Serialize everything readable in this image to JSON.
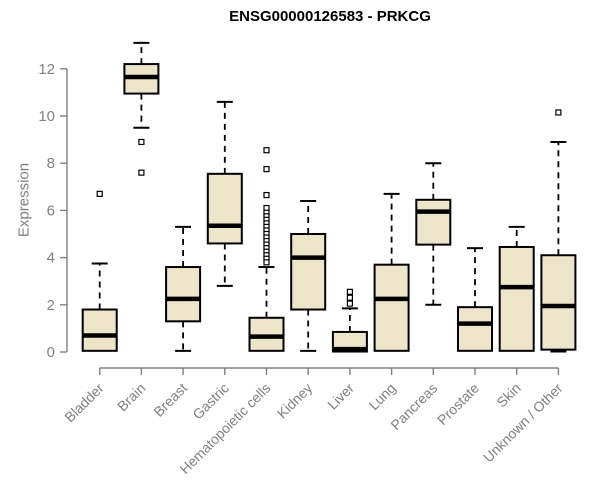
{
  "chart_data": {
    "type": "boxplot",
    "title": "ENSG00000126583 - PRKCG",
    "ylabel": "Expression",
    "xlabel": "",
    "yticks": [
      0,
      2,
      4,
      6,
      8,
      10,
      12
    ],
    "ylim": [
      0,
      13.3
    ],
    "grid": false,
    "legend": "none",
    "categories": [
      "Bladder",
      "Brain",
      "Breast",
      "Gastric",
      "Hematopoietic cells",
      "Kidney",
      "Liver",
      "Lung",
      "Pancreas",
      "Prostate",
      "Skin",
      "Unknown / Other"
    ],
    "series": [
      {
        "label": "Bladder",
        "whisker_low": 0.05,
        "q1": 0.05,
        "median": 0.7,
        "q3": 1.8,
        "whisker_high": 3.75,
        "outliers": [
          6.7
        ]
      },
      {
        "label": "Brain",
        "whisker_low": 9.5,
        "q1": 10.95,
        "median": 11.65,
        "q3": 12.2,
        "whisker_high": 13.1,
        "outliers": [
          8.9,
          7.6
        ]
      },
      {
        "label": "Breast",
        "whisker_low": 0.05,
        "q1": 1.3,
        "median": 2.25,
        "q3": 3.6,
        "whisker_high": 5.3,
        "outliers": []
      },
      {
        "label": "Gastric",
        "whisker_low": 2.8,
        "q1": 4.6,
        "median": 5.35,
        "q3": 7.55,
        "whisker_high": 10.6,
        "outliers": []
      },
      {
        "label": "Hematopoietic cells",
        "whisker_low": 0.02,
        "q1": 0.05,
        "median": 0.65,
        "q3": 1.45,
        "whisker_high": 3.6,
        "outliers": [
          8.55,
          7.75,
          6.65,
          6.1,
          5.9,
          5.75,
          5.6,
          5.45,
          5.3,
          5.15,
          5.0,
          4.85,
          4.7,
          4.55,
          4.4,
          4.25,
          4.1,
          3.95,
          3.8
        ]
      },
      {
        "label": "Kidney",
        "whisker_low": 0.05,
        "q1": 1.8,
        "median": 4.0,
        "q3": 5.0,
        "whisker_high": 6.4,
        "outliers": []
      },
      {
        "label": "Liver",
        "whisker_low": 0.02,
        "q1": 0.02,
        "median": 0.12,
        "q3": 0.85,
        "whisker_high": 1.85,
        "outliers": [
          2.05,
          2.3,
          2.55
        ]
      },
      {
        "label": "Lung",
        "whisker_low": 0.02,
        "q1": 0.05,
        "median": 2.25,
        "q3": 3.7,
        "whisker_high": 6.7,
        "outliers": []
      },
      {
        "label": "Pancreas",
        "whisker_low": 2.0,
        "q1": 4.55,
        "median": 5.95,
        "q3": 6.45,
        "whisker_high": 8.0,
        "outliers": []
      },
      {
        "label": "Prostate",
        "whisker_low": 0.05,
        "q1": 0.05,
        "median": 1.2,
        "q3": 1.9,
        "whisker_high": 4.4,
        "outliers": []
      },
      {
        "label": "Skin",
        "whisker_low": 0.05,
        "q1": 0.05,
        "median": 2.75,
        "q3": 4.45,
        "whisker_high": 5.3,
        "outliers": []
      },
      {
        "label": "Unknown / Other",
        "whisker_low": 0.02,
        "q1": 0.1,
        "median": 1.95,
        "q3": 4.1,
        "whisker_high": 8.9,
        "outliers": [
          10.15
        ]
      }
    ],
    "colors": {
      "box_fill": "#ece5ca",
      "box_line": "#000000",
      "median_line": "#000000",
      "outlier_marker": "open-square",
      "axis": "#808080",
      "title": "#000000",
      "background": "#ffffff"
    }
  }
}
